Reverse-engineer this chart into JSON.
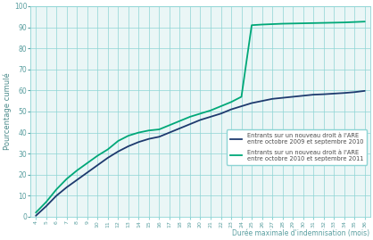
{
  "ylabel": "Pourcentage cumulé",
  "xlabel": "Durée maximale d'indemnisation (mois)",
  "x_ticks": [
    4,
    5,
    6,
    7,
    8,
    9,
    10,
    11,
    12,
    13,
    14,
    15,
    16,
    17,
    18,
    19,
    20,
    21,
    22,
    23,
    24,
    25,
    26,
    27,
    28,
    29,
    30,
    31,
    32,
    33,
    34,
    35,
    36
  ],
  "ylim": [
    0,
    100
  ],
  "xlim": [
    3.5,
    36.5
  ],
  "grid_color": "#8dd4d4",
  "bg_color": "#eaf6f6",
  "color_blue": "#1e3a6e",
  "color_green": "#00a878",
  "series1_label": "Entrants sur un nouveau droit à l'ARE\nentre octobre 2009 et septembre 2010",
  "series2_label": "Entrants sur un nouveau droit à l'ARE\nentre octobre 2010 et septembre 2011",
  "series1_x": [
    4,
    5,
    6,
    7,
    8,
    9,
    10,
    11,
    12,
    13,
    14,
    15,
    16,
    17,
    18,
    19,
    20,
    21,
    22,
    23,
    24,
    25,
    26,
    27,
    28,
    29,
    30,
    31,
    32,
    33,
    34,
    35,
    36
  ],
  "series1_y": [
    0.5,
    5,
    10,
    14,
    17.5,
    21,
    24.5,
    28,
    31,
    33.5,
    35.5,
    37,
    38,
    40,
    42,
    44,
    46,
    47.5,
    49,
    51,
    52.5,
    54,
    55,
    56,
    56.5,
    57,
    57.5,
    58,
    58.2,
    58.5,
    58.8,
    59.2,
    59.8
  ],
  "series2_x": [
    4,
    5,
    6,
    7,
    8,
    9,
    10,
    11,
    12,
    13,
    14,
    15,
    16,
    17,
    18,
    19,
    20,
    21,
    22,
    23,
    24,
    24,
    25,
    26,
    27,
    28,
    29,
    30,
    31,
    32,
    33,
    34,
    35,
    36
  ],
  "series2_y": [
    2,
    7,
    13,
    18,
    22,
    25.5,
    29,
    32,
    36,
    38.5,
    40,
    41,
    41.5,
    43.5,
    45.5,
    47.5,
    49,
    50.5,
    52.5,
    54.5,
    57,
    57,
    91,
    91.3,
    91.5,
    91.7,
    91.8,
    91.9,
    92.0,
    92.1,
    92.2,
    92.3,
    92.5,
    92.7
  ]
}
